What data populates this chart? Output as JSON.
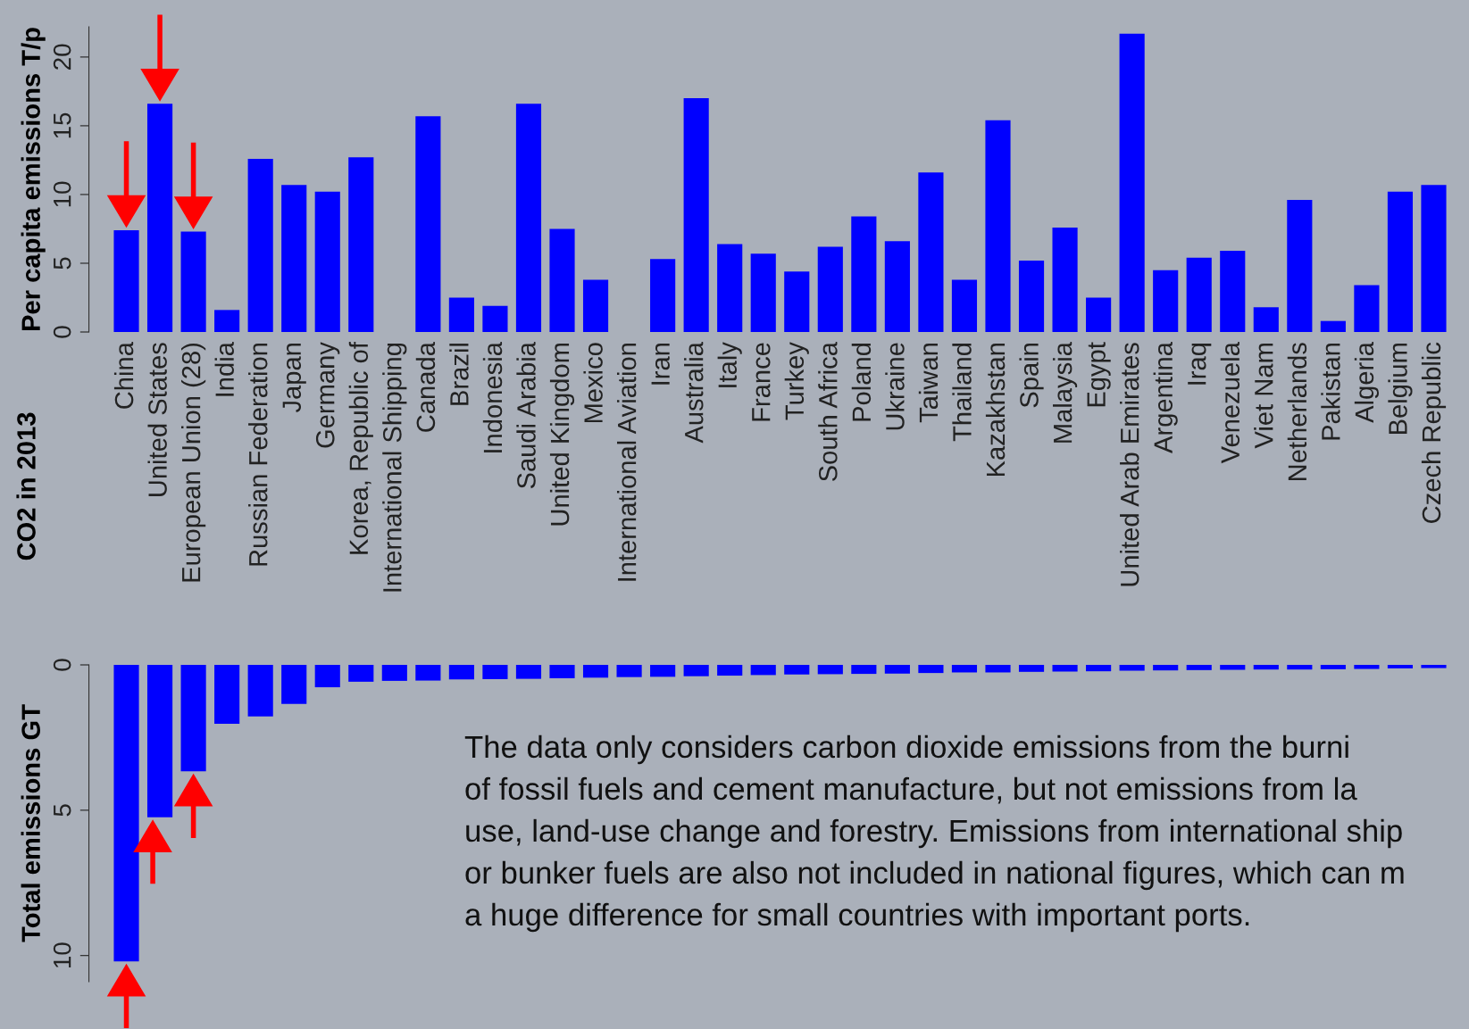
{
  "chart_data": [
    {
      "type": "bar",
      "title": "CO2 in 2013",
      "ylabel": "Per capita emissions T/p",
      "categories": [
        "China",
        "United States",
        "European Union (28)",
        "India",
        "Russian Federation",
        "Japan",
        "Germany",
        "Korea, Republic of",
        "International Shipping",
        "Canada",
        "Brazil",
        "Indonesia",
        "Saudi Arabia",
        "United Kingdom",
        "Mexico",
        "International Aviation",
        "Iran",
        "Australia",
        "Italy",
        "France",
        "Turkey",
        "South Africa",
        "Poland",
        "Ukraine",
        "Taiwan",
        "Thailand",
        "Kazakhstan",
        "Spain",
        "Malaysia",
        "Egypt",
        "United Arab Emirates",
        "Argentina",
        "Iraq",
        "Venezuela",
        "Viet Nam",
        "Netherlands",
        "Pakistan",
        "Algeria",
        "Belgium",
        "Czech Republic"
      ],
      "values": [
        7.4,
        16.6,
        7.3,
        1.6,
        12.6,
        10.7,
        10.2,
        12.7,
        null,
        15.7,
        2.5,
        1.9,
        16.6,
        7.5,
        3.8,
        null,
        5.3,
        17.0,
        6.4,
        5.7,
        4.4,
        6.2,
        8.4,
        6.6,
        11.6,
        3.8,
        15.4,
        5.2,
        7.6,
        2.5,
        21.7,
        4.5,
        5.4,
        5.9,
        1.8,
        9.6,
        0.8,
        3.4,
        10.2,
        10.7
      ],
      "color": "#0000ff",
      "ylim": [
        0,
        22.2
      ],
      "yticks": [
        0,
        5,
        10,
        15,
        20
      ],
      "grid": false,
      "legend": false
    },
    {
      "type": "bar",
      "ylabel": "Total emissions GT",
      "categories": [
        null,
        null,
        null,
        null,
        null,
        null,
        null,
        null,
        null,
        null,
        null,
        null,
        null,
        null,
        null,
        null,
        null,
        null,
        null,
        null,
        null,
        null,
        null,
        null,
        null,
        null,
        null,
        null,
        null,
        null,
        null,
        null,
        null,
        null,
        null,
        null,
        null,
        null,
        null,
        null
      ],
      "values": [
        10.2,
        5.24,
        3.66,
        2.03,
        1.77,
        1.34,
        0.77,
        0.58,
        0.55,
        0.54,
        0.5,
        0.49,
        0.48,
        0.46,
        0.44,
        0.42,
        0.41,
        0.39,
        0.37,
        0.35,
        0.33,
        0.32,
        0.31,
        0.3,
        0.28,
        0.26,
        0.26,
        0.24,
        0.23,
        0.22,
        0.2,
        0.19,
        0.18,
        0.17,
        0.16,
        0.16,
        0.15,
        0.14,
        0.12,
        0.11
      ],
      "color": "#0000ff",
      "ylim": [
        10.9,
        0
      ],
      "yticks": [
        0,
        5,
        10
      ],
      "tick_labels": "y",
      "grid": false,
      "legend": false,
      "annotations": [
        "The data only considers carbon dioxide emissions from the burni",
        "of fossil fuels and cement manufacture, but not emissions from la",
        "use, land-use change and forestry. Emissions from international ship",
        "or bunker fuels are also not included in national figures, which can m",
        "a huge difference for small countries with important ports."
      ]
    }
  ]
}
